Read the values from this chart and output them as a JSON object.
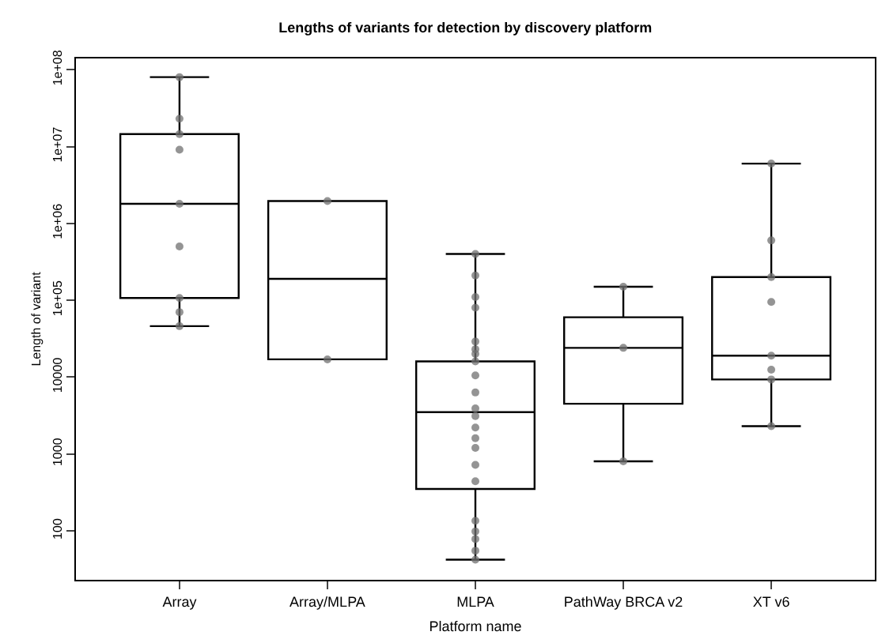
{
  "chart_data": {
    "type": "box",
    "title": "Lengths of variants for detection by discovery platform",
    "xlabel": "Platform name",
    "ylabel": "Length of variant",
    "categories": [
      "Array",
      "Array/MLPA",
      "MLPA",
      "PathWay BRCA v2",
      "XT v6"
    ],
    "log": true,
    "ylim": [
      23,
      140000000
    ],
    "yticks": [
      100,
      1000,
      10000,
      {
        "value": 100000,
        "label": "1e+05"
      },
      {
        "value": 1000000,
        "label": "1e+06"
      },
      {
        "value": 10000000,
        "label": "1e+07"
      },
      {
        "value": 100000000,
        "label": "1e+08"
      }
    ],
    "grid": false,
    "boxes": [
      {
        "low": 46000,
        "q1": 107000,
        "median": 1800000,
        "q3": 14500000,
        "high": 80000000
      },
      {
        "low": 17000,
        "q1": 17000,
        "median": 190000,
        "q3": 1950000,
        "high": 1950000
      },
      {
        "low": 42,
        "q1": 350,
        "median": 3500,
        "q3": 16000,
        "high": 400000
      },
      {
        "low": 800,
        "q1": 4500,
        "median": 24000,
        "q3": 60000,
        "high": 150000
      },
      {
        "low": 2300,
        "q1": 9300,
        "median": 19000,
        "q3": 200000,
        "high": 6000000
      }
    ],
    "series": [
      {
        "type": "scatter",
        "color": "#707070",
        "x": [
          "Array",
          "Array",
          "Array",
          "Array",
          "Array",
          "Array",
          "Array",
          "Array",
          "Array"
        ],
        "values": [
          80000000,
          23000000,
          14500000,
          9100000,
          1800000,
          500000,
          107000,
          70000,
          46000
        ]
      },
      {
        "type": "scatter",
        "color": "#707070",
        "x": [
          "Array/MLPA",
          "Array/MLPA"
        ],
        "values": [
          1950000,
          17000
        ]
      },
      {
        "type": "scatter",
        "color": "#707070",
        "x": [
          "MLPA",
          "MLPA",
          "MLPA",
          "MLPA",
          "MLPA",
          "MLPA",
          "MLPA",
          "MLPA",
          "MLPA",
          "MLPA",
          "MLPA",
          "MLPA",
          "MLPA",
          "MLPA",
          "MLPA",
          "MLPA",
          "MLPA",
          "MLPA",
          "MLPA",
          "MLPA",
          "MLPA",
          "MLPA"
        ],
        "values": [
          400000,
          210000,
          110000,
          80000,
          29000,
          23000,
          20000,
          16000,
          10500,
          6300,
          3900,
          3100,
          2200,
          1600,
          1200,
          720,
          440,
          135,
          98,
          78,
          55,
          42
        ]
      },
      {
        "type": "scatter",
        "color": "#707070",
        "x": [
          "PathWay BRCA v2",
          "PathWay BRCA v2",
          "PathWay BRCA v2"
        ],
        "values": [
          150000,
          24000,
          800
        ]
      },
      {
        "type": "scatter",
        "color": "#707070",
        "x": [
          "XT v6",
          "XT v6",
          "XT v6",
          "XT v6",
          "XT v6",
          "XT v6",
          "XT v6",
          "XT v6"
        ],
        "values": [
          6000000,
          600000,
          200000,
          95000,
          19000,
          12500,
          9300,
          2300
        ]
      }
    ],
    "marker": "circle"
  }
}
